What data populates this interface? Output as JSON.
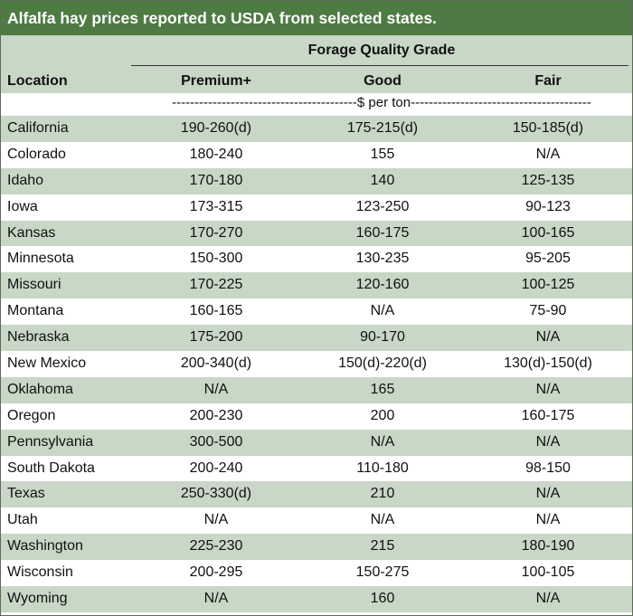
{
  "title": "Alfalfa hay prices reported to USDA from selected states.",
  "header": {
    "group_label": "Forage Quality Grade",
    "location_label": "Location",
    "columns": [
      "Premium+",
      "Good",
      "Fair"
    ]
  },
  "units_row": "-----------------------------------------$ per ton----------------------------------------",
  "rows": [
    {
      "location": "California",
      "premium": "190-260(d)",
      "good": "175-215(d)",
      "fair": "150-185(d)"
    },
    {
      "location": "Colorado",
      "premium": "180-240",
      "good": "155",
      "fair": "N/A"
    },
    {
      "location": "Idaho",
      "premium": "170-180",
      "good": "140",
      "fair": "125-135"
    },
    {
      "location": "Iowa",
      "premium": "173-315",
      "good": "123-250",
      "fair": "90-123"
    },
    {
      "location": "Kansas",
      "premium": "170-270",
      "good": "160-175",
      "fair": "100-165"
    },
    {
      "location": "Minnesota",
      "premium": "150-300",
      "good": "130-235",
      "fair": "95-205"
    },
    {
      "location": "Missouri",
      "premium": "170-225",
      "good": "120-160",
      "fair": "100-125"
    },
    {
      "location": "Montana",
      "premium": "160-165",
      "good": "N/A",
      "fair": "75-90"
    },
    {
      "location": "Nebraska",
      "premium": "175-200",
      "good": "90-170",
      "fair": "N/A"
    },
    {
      "location": "New Mexico",
      "premium": "200-340(d)",
      "good": "150(d)-220(d)",
      "fair": "130(d)-150(d)"
    },
    {
      "location": "Oklahoma",
      "premium": "N/A",
      "good": "165",
      "fair": "N/A"
    },
    {
      "location": "Oregon",
      "premium": "200-230",
      "good": "200",
      "fair": "160-175"
    },
    {
      "location": "Pennsylvania",
      "premium": "300-500",
      "good": "N/A",
      "fair": "N/A"
    },
    {
      "location": "South Dakota",
      "premium": "200-240",
      "good": "110-180",
      "fair": "98-150"
    },
    {
      "location": "Texas",
      "premium": "250-330(d)",
      "good": "210",
      "fair": "N/A"
    },
    {
      "location": "Utah",
      "premium": "N/A",
      "good": "N/A",
      "fair": "N/A"
    },
    {
      "location": "Washington",
      "premium": "225-230",
      "good": "215",
      "fair": "180-190"
    },
    {
      "location": "Wisconsin",
      "premium": "200-295",
      "good": "150-275",
      "fair": "100-105"
    },
    {
      "location": "Wyoming",
      "premium": "N/A",
      "good": "160",
      "fair": "N/A"
    }
  ],
  "colors": {
    "title_bg": "#4e7a43",
    "band": "#c8d7c6"
  }
}
